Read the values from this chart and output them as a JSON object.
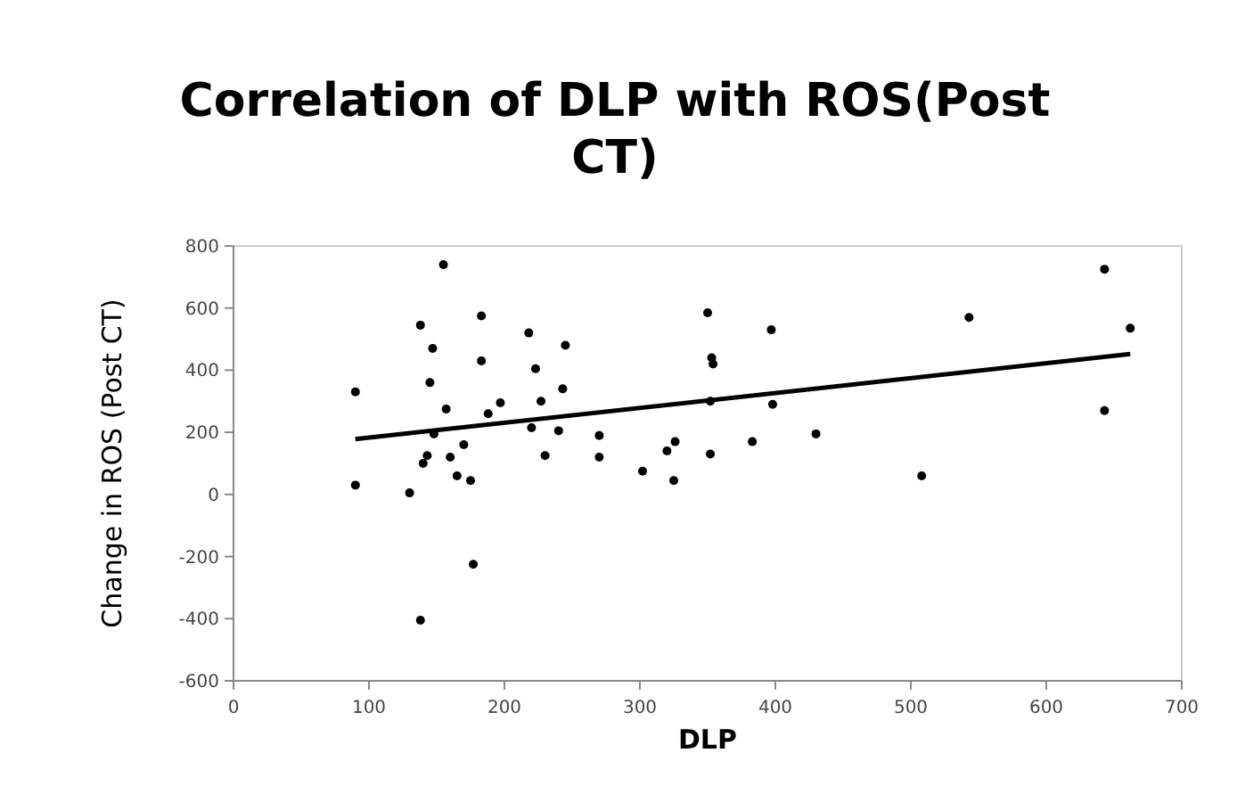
{
  "chart_data": {
    "type": "scatter",
    "title": "Correlation of DLP with ROS(Post CT)",
    "xlabel": "DLP",
    "ylabel": "Change in ROS  (Post CT)",
    "xlim": [
      0,
      700
    ],
    "xticks": [
      0,
      100,
      200,
      300,
      400,
      500,
      600,
      700
    ],
    "ylim": [
      -600,
      800
    ],
    "yticks": [
      -600,
      -400,
      -200,
      0,
      200,
      400,
      600,
      800
    ],
    "grid": false,
    "series": [
      {
        "marker": "circle",
        "color": "#000000",
        "x": [
          90,
          90,
          130,
          138,
          138,
          140,
          143,
          145,
          147,
          148,
          155,
          157,
          160,
          165,
          170,
          175,
          177,
          183,
          183,
          188,
          197,
          218,
          220,
          223,
          227,
          230,
          240,
          243,
          245,
          270,
          270,
          302,
          320,
          325,
          326,
          350,
          352,
          352,
          353,
          354,
          383,
          397,
          398,
          430,
          508,
          543,
          643,
          643,
          662
        ],
        "values": [
          330,
          30,
          5,
          545,
          -405,
          100,
          125,
          360,
          470,
          195,
          740,
          275,
          120,
          60,
          160,
          45,
          -225,
          575,
          430,
          260,
          295,
          520,
          215,
          405,
          300,
          125,
          205,
          340,
          480,
          190,
          120,
          75,
          140,
          45,
          170,
          585,
          130,
          300,
          440,
          420,
          170,
          530,
          290,
          195,
          60,
          570,
          725,
          270,
          535
        ]
      },
      {
        "type": "line",
        "color": "#000000",
        "line_style": "solid",
        "x": [
          90,
          662
        ],
        "values": [
          178,
          452
        ]
      }
    ]
  }
}
